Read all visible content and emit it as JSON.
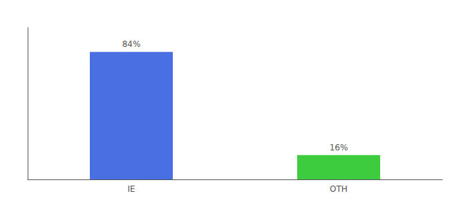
{
  "chart_data": {
    "type": "bar",
    "categories": [
      "IE",
      "OTH"
    ],
    "values": [
      84,
      16
    ],
    "colors": [
      "#4a6fe3",
      "#3dcc3d"
    ],
    "value_labels": [
      "84%",
      "16%"
    ],
    "data_labels": true,
    "ylim": [
      0,
      100
    ],
    "grid": false,
    "tick_labels": "x"
  }
}
